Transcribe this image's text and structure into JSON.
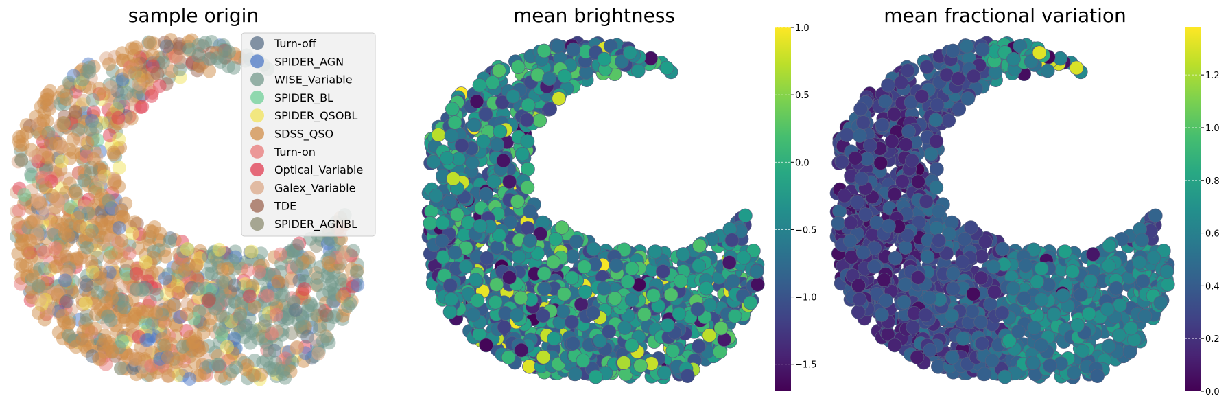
{
  "chart_data": [
    {
      "type": "scatter",
      "title": "sample origin",
      "axes_visible": false,
      "legend_position": "upper-right",
      "legend": [
        {
          "label": "Turn-off",
          "color": "#5b7088"
        },
        {
          "label": "SPIDER_AGN",
          "color": "#4e7ac7"
        },
        {
          "label": "WISE_Variable",
          "color": "#74998c"
        },
        {
          "label": "SPIDER_BL",
          "color": "#6fcf97"
        },
        {
          "label": "SPIDER_QSOBL",
          "color": "#f2e35a"
        },
        {
          "label": "SDSS_QSO",
          "color": "#d08d4a"
        },
        {
          "label": "Turn-on",
          "color": "#e87878"
        },
        {
          "label": "Optical_Variable",
          "color": "#e03b50"
        },
        {
          "label": "Galex_Variable",
          "color": "#dba888"
        },
        {
          "label": "TDE",
          "color": "#9c6551"
        },
        {
          "label": "SPIDER_AGNBL",
          "color": "#8c8c72"
        }
      ]
    },
    {
      "type": "scatter",
      "title": "mean brightness",
      "axes_visible": false,
      "colormap": "viridis",
      "colorbar": {
        "min": -1.7,
        "max": 1.0,
        "ticks": [
          "1.0",
          "0.5",
          "0.0",
          "−0.5",
          "−1.0",
          "−1.5"
        ],
        "tick_values": [
          1.0,
          0.5,
          0.0,
          -0.5,
          -1.0,
          -1.5
        ]
      }
    },
    {
      "type": "scatter",
      "title": "mean fractional variation",
      "axes_visible": false,
      "colormap": "viridis",
      "colorbar": {
        "min": 0.0,
        "max": 1.38,
        "ticks": [
          "1.2",
          "1.0",
          "0.8",
          "0.6",
          "0.4",
          "0.2",
          "0.0"
        ],
        "tick_values": [
          1.2,
          1.0,
          0.8,
          0.6,
          0.4,
          0.2,
          0.0
        ]
      }
    }
  ]
}
